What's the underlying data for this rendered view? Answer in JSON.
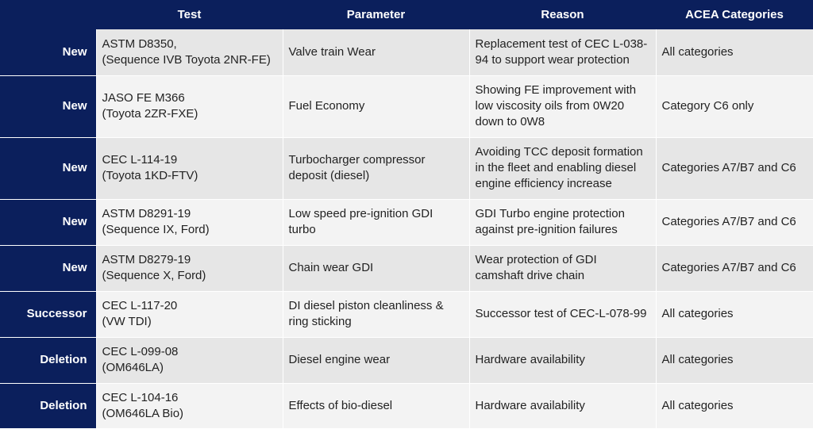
{
  "headers": [
    "",
    "Test",
    "Parameter",
    "Reason",
    "ACEA Categories"
  ],
  "rows": [
    {
      "status": "New",
      "test": [
        "ASTM D8350,",
        "(Sequence IVB Toyota 2NR-FE)"
      ],
      "parameter": [
        "Valve train Wear"
      ],
      "reason": [
        "Replacement test of CEC L-038-",
        "94 to support wear protection"
      ],
      "categories": [
        "All categories"
      ]
    },
    {
      "status": "New",
      "test": [
        "JASO FE M366",
        "(Toyota 2ZR-FXE)"
      ],
      "parameter": [
        "Fuel Economy"
      ],
      "reason": [
        "Showing FE improvement with",
        "low viscosity oils from 0W20",
        "down to 0W8"
      ],
      "categories": [
        "Category C6 only"
      ]
    },
    {
      "status": "New",
      "test": [
        "CEC L-114-19",
        "(Toyota 1KD-FTV)"
      ],
      "parameter": [
        "Turbocharger compressor",
        "deposit (diesel)"
      ],
      "reason": [
        "Avoiding TCC deposit formation",
        "in the fleet and enabling diesel",
        "engine efficiency increase"
      ],
      "categories": [
        "Categories A7/B7 and C6"
      ]
    },
    {
      "status": "New",
      "test": [
        "ASTM D8291-19",
        "(Sequence IX, Ford)"
      ],
      "parameter": [
        "Low speed pre-ignition GDI",
        "turbo"
      ],
      "reason": [
        "GDI Turbo engine protection",
        "against pre-ignition failures"
      ],
      "categories": [
        "Categories A7/B7 and C6"
      ]
    },
    {
      "status": "New",
      "test": [
        "ASTM D8279-19",
        "(Sequence X, Ford)"
      ],
      "parameter": [
        "Chain wear GDI"
      ],
      "reason": [
        "Wear protection of GDI",
        "camshaft drive chain"
      ],
      "categories": [
        "Categories A7/B7 and C6"
      ]
    },
    {
      "status": "Successor",
      "test": [
        "CEC L-117-20",
        "(VW TDI)"
      ],
      "parameter": [
        "DI diesel piston cleanliness &",
        "ring sticking"
      ],
      "reason": [
        "Successor test of CEC-L-078-99"
      ],
      "categories": [
        "All categories"
      ]
    },
    {
      "status": "Deletion",
      "test": [
        "CEC L-099-08",
        "(OM646LA)"
      ],
      "parameter": [
        "Diesel engine wear"
      ],
      "reason": [
        "Hardware availability"
      ],
      "categories": [
        "All categories"
      ]
    },
    {
      "status": "Deletion",
      "test": [
        "CEC L-104-16",
        "(OM646LA Bio)"
      ],
      "parameter": [
        "Effects of bio-diesel"
      ],
      "reason": [
        "Hardware availability"
      ],
      "categories": [
        "All categories"
      ]
    }
  ]
}
